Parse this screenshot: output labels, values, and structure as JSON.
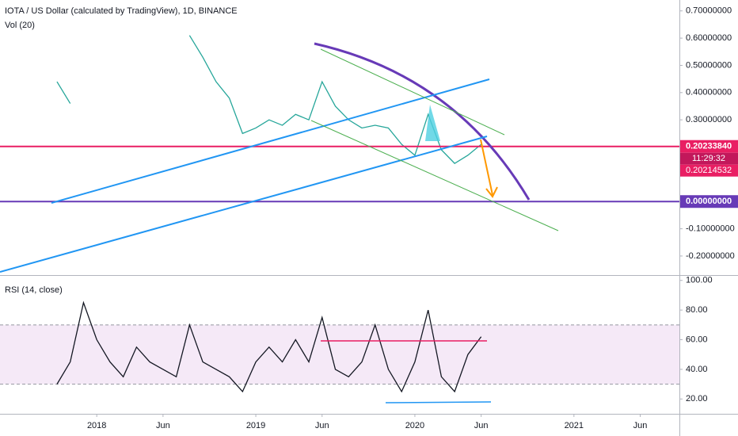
{
  "chart_data": [
    {
      "type": "line",
      "title": "IOTA / US Dollar (calculated by TradingView), 1D, BINANCE",
      "indicator": "Vol (20)",
      "x": [
        "2017-10",
        "2017-11",
        "2017-12",
        "2018-01",
        "2018-02",
        "2018-03",
        "2018-04",
        "2018-05",
        "2018-06",
        "2018-07",
        "2018-08",
        "2018-09",
        "2018-10",
        "2018-11",
        "2018-12",
        "2019-01",
        "2019-02",
        "2019-03",
        "2019-04",
        "2019-05",
        "2019-06",
        "2019-07",
        "2019-08",
        "2019-09",
        "2019-10",
        "2019-11",
        "2019-12",
        "2020-01",
        "2020-02",
        "2020-03",
        "2020-04",
        "2020-05",
        "2020-06"
      ],
      "values": [
        0.44,
        0.36,
        null,
        null,
        null,
        null,
        null,
        null,
        null,
        null,
        0.61,
        0.53,
        0.44,
        0.38,
        0.25,
        0.27,
        0.3,
        0.28,
        0.32,
        0.3,
        0.44,
        0.35,
        0.3,
        0.27,
        0.28,
        0.27,
        0.21,
        0.17,
        0.32,
        0.19,
        0.14,
        0.17,
        0.21
      ],
      "color": "#26a69a",
      "xlim": [
        "2017-06",
        "2021-08"
      ],
      "ylim": [
        -0.27,
        0.74
      ],
      "yticks": [
        {
          "value": 0.7,
          "label": "0.70000000"
        },
        {
          "value": 0.6,
          "label": "0.60000000"
        },
        {
          "value": 0.5,
          "label": "0.50000000"
        },
        {
          "value": 0.4,
          "label": "0.40000000"
        },
        {
          "value": 0.3,
          "label": "0.30000000"
        },
        {
          "value": 0,
          "label": "0.00000000"
        },
        {
          "value": -0.1,
          "label": "-0.10000000"
        },
        {
          "value": -0.2,
          "label": "-0.20000000"
        }
      ],
      "markers": [
        {
          "value": 0.2023384,
          "label": "0.20233840"
        },
        {
          "value": 0.20214532,
          "label": "0.20214532"
        }
      ],
      "countdown": "11:29:32"
    },
    {
      "type": "line",
      "title": "RSI (14, close)",
      "x": [
        "2017-10",
        "2017-11",
        "2017-12",
        "2018-01",
        "2018-02",
        "2018-03",
        "2018-04",
        "2018-05",
        "2018-06",
        "2018-07",
        "2018-08",
        "2018-09",
        "2018-10",
        "2018-11",
        "2018-12",
        "2019-01",
        "2019-02",
        "2019-03",
        "2019-04",
        "2019-05",
        "2019-06",
        "2019-07",
        "2019-08",
        "2019-09",
        "2019-10",
        "2019-11",
        "2019-12",
        "2020-01",
        "2020-02",
        "2020-03",
        "2020-04",
        "2020-05",
        "2020-06"
      ],
      "values": [
        30,
        45,
        85,
        60,
        45,
        35,
        55,
        45,
        40,
        35,
        70,
        45,
        40,
        35,
        25,
        45,
        55,
        45,
        60,
        45,
        75,
        40,
        35,
        45,
        70,
        40,
        25,
        45,
        80,
        35,
        25,
        50,
        62
      ],
      "color": "#131722",
      "band": [
        30,
        70
      ],
      "xlim": [
        "2017-06",
        "2021-08"
      ],
      "ylim": [
        10,
        102
      ],
      "yticks": [
        {
          "value": 100,
          "label": "100.00"
        },
        {
          "value": 80,
          "label": "80.00"
        },
        {
          "value": 60,
          "label": "60.00"
        },
        {
          "value": 40,
          "label": "40.00"
        },
        {
          "value": 20,
          "label": "20.00"
        }
      ],
      "xticks": [
        {
          "value": "2018-01",
          "label": "2018"
        },
        {
          "value": "2018-06",
          "label": "Jun"
        },
        {
          "value": "2019-01",
          "label": "2019"
        },
        {
          "value": "2019-06",
          "label": "Jun"
        },
        {
          "value": "2020-01",
          "label": "2020"
        },
        {
          "value": "2020-06",
          "label": "Jun"
        },
        {
          "value": "2021-01",
          "label": "2021"
        },
        {
          "value": "2021-06",
          "label": "Jun"
        }
      ]
    }
  ]
}
